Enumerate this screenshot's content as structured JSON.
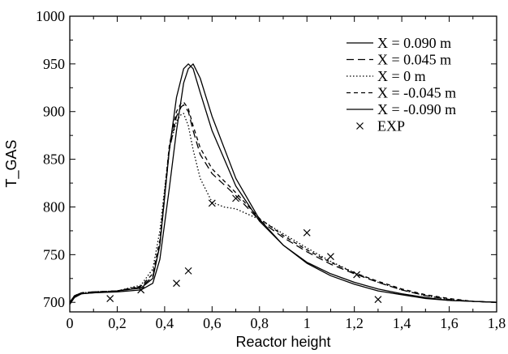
{
  "chart_data": {
    "type": "line",
    "title": "",
    "xlabel": "Reactor height",
    "ylabel": "T_GAS",
    "xlim": [
      0,
      1.8
    ],
    "ylim": [
      690,
      1000
    ],
    "grid": false,
    "legend_placement": "top-right",
    "x_ticks": [
      0,
      0.2,
      0.4,
      0.6,
      0.8,
      1.0,
      1.2,
      1.4,
      1.6,
      1.8
    ],
    "x_tick_labels": [
      "0",
      "0,2",
      "0,4",
      "0,6",
      "0,8",
      "1",
      "1,2",
      "1,4",
      "1,6",
      "1,8"
    ],
    "y_ticks": [
      700,
      750,
      800,
      850,
      900,
      950,
      1000
    ],
    "y_tick_labels": [
      "700",
      "750",
      "800",
      "850",
      "900",
      "950",
      "1000"
    ],
    "series": [
      {
        "name": "X =  0.090 m",
        "style": "solid",
        "x": [
          0,
          0.02,
          0.05,
          0.1,
          0.2,
          0.3,
          0.35,
          0.38,
          0.42,
          0.45,
          0.48,
          0.5,
          0.52,
          0.55,
          0.6,
          0.7,
          0.8,
          0.9,
          1.0,
          1.1,
          1.2,
          1.3,
          1.4,
          1.5,
          1.6,
          1.7,
          1.8
        ],
        "y": [
          698,
          706,
          709,
          710,
          712,
          715,
          725,
          760,
          860,
          915,
          945,
          950,
          945,
          920,
          880,
          822,
          785,
          760,
          742,
          730,
          721,
          714,
          709,
          705,
          702,
          701,
          700
        ]
      },
      {
        "name": "X =  0.045 m",
        "style": "long-dash",
        "x": [
          0,
          0.02,
          0.05,
          0.1,
          0.2,
          0.3,
          0.35,
          0.38,
          0.42,
          0.45,
          0.47,
          0.48,
          0.5,
          0.52,
          0.55,
          0.6,
          0.7,
          0.8,
          0.9,
          1.0,
          1.1,
          1.2,
          1.3,
          1.4,
          1.5,
          1.6,
          1.7,
          1.8
        ],
        "y": [
          700,
          707,
          710,
          711,
          712,
          716,
          727,
          760,
          860,
          895,
          905,
          907,
          900,
          880,
          855,
          835,
          812,
          786,
          768,
          753,
          740,
          730,
          721,
          713,
          707,
          703,
          701,
          700
        ]
      },
      {
        "name": "X =  0 m",
        "style": "dotted",
        "x": [
          0,
          0.02,
          0.05,
          0.1,
          0.2,
          0.3,
          0.35,
          0.38,
          0.42,
          0.45,
          0.47,
          0.48,
          0.5,
          0.52,
          0.55,
          0.6,
          0.65,
          0.7,
          0.8,
          0.9,
          1.0,
          1.1,
          1.2,
          1.3,
          1.4,
          1.5,
          1.6,
          1.7,
          1.8
        ],
        "y": [
          700,
          707,
          710,
          711,
          712,
          718,
          735,
          775,
          862,
          890,
          897,
          898,
          885,
          860,
          830,
          805,
          800,
          798,
          787,
          772,
          757,
          743,
          731,
          721,
          713,
          707,
          703,
          701,
          700
        ]
      },
      {
        "name": "X = -0.045 m",
        "style": "short-dash",
        "x": [
          0,
          0.02,
          0.05,
          0.1,
          0.2,
          0.3,
          0.35,
          0.38,
          0.42,
          0.45,
          0.47,
          0.48,
          0.5,
          0.52,
          0.55,
          0.6,
          0.7,
          0.8,
          0.9,
          1.0,
          1.1,
          1.2,
          1.3,
          1.4,
          1.5,
          1.6,
          1.7,
          1.8
        ],
        "y": [
          700,
          707,
          710,
          711,
          712,
          717,
          730,
          765,
          865,
          900,
          909,
          910,
          903,
          885,
          862,
          840,
          815,
          788,
          770,
          755,
          742,
          731,
          722,
          714,
          708,
          704,
          701,
          700
        ]
      },
      {
        "name": "X = -0.090 m",
        "style": "solid",
        "x": [
          0,
          0.02,
          0.05,
          0.1,
          0.2,
          0.3,
          0.35,
          0.38,
          0.42,
          0.45,
          0.48,
          0.5,
          0.52,
          0.55,
          0.6,
          0.7,
          0.8,
          0.9,
          1.0,
          1.1,
          1.2,
          1.3,
          1.4,
          1.5,
          1.6,
          1.7,
          1.8
        ],
        "y": [
          698,
          705,
          709,
          710,
          711,
          713,
          720,
          745,
          820,
          880,
          930,
          945,
          950,
          935,
          895,
          830,
          787,
          760,
          741,
          728,
          719,
          712,
          708,
          704,
          702,
          701,
          700
        ]
      }
    ],
    "scatter": {
      "name": "EXP",
      "marker": "x",
      "x": [
        0.17,
        0.3,
        0.45,
        0.5,
        0.6,
        0.7,
        1.0,
        1.1,
        1.21,
        1.3
      ],
      "y": [
        704,
        713,
        720,
        733,
        804,
        809,
        773,
        748,
        729,
        703
      ]
    }
  }
}
